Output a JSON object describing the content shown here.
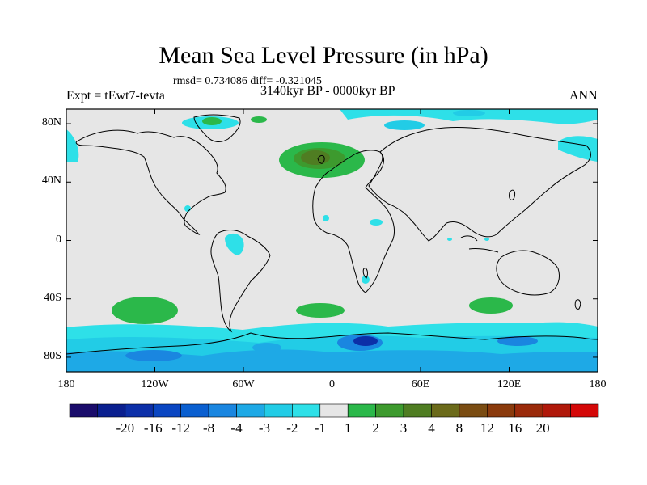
{
  "title": "Mean Sea Level Pressure (in hPa)",
  "stats_line": "rmsd= 0.734086 diff= -0.321045",
  "experiment_label": "Expt = tEwt7-tevta",
  "period_label": "3140kyr BP - 0000kyr BP",
  "season_label": "ANN",
  "y_axis": {
    "ticks": [
      {
        "label": "80N",
        "value": 80
      },
      {
        "label": "40N",
        "value": 40
      },
      {
        "label": "0",
        "value": 0
      },
      {
        "label": "40S",
        "value": -40
      },
      {
        "label": "80S",
        "value": -80
      }
    ]
  },
  "x_axis": {
    "ticks": [
      {
        "label": "180",
        "value": -180
      },
      {
        "label": "120W",
        "value": -120
      },
      {
        "label": "60W",
        "value": -60
      },
      {
        "label": "0",
        "value": 0
      },
      {
        "label": "60E",
        "value": 60
      },
      {
        "label": "120E",
        "value": 120
      },
      {
        "label": "180",
        "value": 180
      }
    ]
  },
  "colorbar": {
    "colors": [
      "#1a0c6b",
      "#0a1f8f",
      "#0c2fa8",
      "#0a46c2",
      "#0a5fd0",
      "#1a86e0",
      "#1ea9e6",
      "#22cce6",
      "#2ee0e8",
      "#e6e6e6",
      "#2bb84a",
      "#3d9a2e",
      "#4f7d22",
      "#6b6a1a",
      "#7a4c12",
      "#8a3a0c",
      "#9a2a0a",
      "#b0180a",
      "#d40808"
    ],
    "labels": [
      "-20",
      "-16",
      "-12",
      "-8",
      "-4",
      "-3",
      "-2",
      "-1",
      "1",
      "2",
      "3",
      "4",
      "8",
      "12",
      "16",
      "20"
    ]
  },
  "chart_data": {
    "type": "heatmap",
    "title": "Mean Sea Level Pressure (in hPa)",
    "units": "hPa",
    "xlim": [
      -180,
      180
    ],
    "ylim": [
      -90,
      90
    ],
    "background_value_range": [
      -1,
      1
    ],
    "regions": [
      {
        "name": "North Atlantic / Europe high",
        "lon": [
          -35,
          20
        ],
        "lat": [
          38,
          65
        ],
        "value_range": [
          2,
          4
        ],
        "core": {
          "lon": [
            -20,
            5
          ],
          "lat": [
            50,
            62
          ],
          "value": 4
        }
      },
      {
        "name": "South Pacific high",
        "lon": [
          -158,
          -110
        ],
        "lat": [
          -52,
          -35
        ],
        "value_range": [
          1,
          2
        ]
      },
      {
        "name": "South Atlantic high",
        "lon": [
          -25,
          5
        ],
        "lat": [
          -48,
          -40
        ],
        "value_range": [
          1,
          2
        ]
      },
      {
        "name": "Indian Ocean high",
        "lon": [
          97,
          125
        ],
        "lat": [
          -46,
          -36
        ],
        "value_range": [
          1,
          2
        ]
      },
      {
        "name": "Southern Ocean / Antarctic belt",
        "lon": [
          -180,
          180
        ],
        "lat": [
          -90,
          -60
        ],
        "value_range": [
          -4,
          -1
        ],
        "min_value": -8
      },
      {
        "name": "Arctic patches",
        "lon": [
          -180,
          180
        ],
        "lat": [
          65,
          90
        ],
        "value_range": [
          -2,
          -1
        ]
      },
      {
        "name": "Amazon low",
        "lon": [
          -70,
          -55
        ],
        "lat": [
          -12,
          0
        ],
        "value_range": [
          -2,
          -1
        ]
      },
      {
        "name": "North Africa lows",
        "lon": [
          -5,
          30
        ],
        "lat": [
          15,
          25
        ],
        "value_range": [
          -2,
          -1
        ]
      }
    ]
  }
}
